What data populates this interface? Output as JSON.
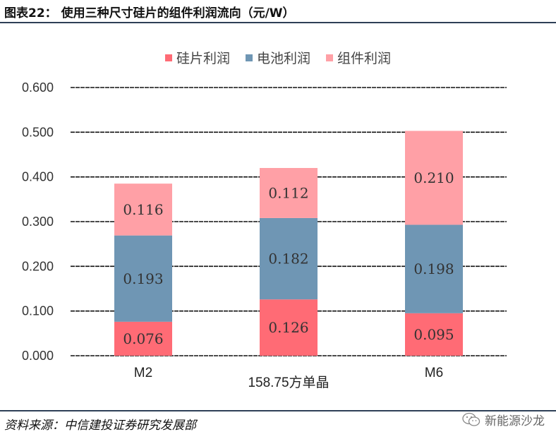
{
  "header": {
    "title": "图表22：  使用三种尺寸硅片的组件利润流向（元/W）"
  },
  "footer": {
    "source": "资料来源：中信建投证券研究发展部",
    "watermark": "新能源沙龙"
  },
  "colors": {
    "wafer": "#ff6b75",
    "cell": "#6f96b4",
    "module": "#ffa0a6"
  },
  "chart_data": {
    "type": "bar",
    "stacked": true,
    "categories": [
      "M2",
      "158.75方单晶",
      "M6"
    ],
    "series": [
      {
        "name": "硅片利润",
        "values": [
          0.076,
          0.126,
          0.095
        ],
        "labels": [
          "0.076",
          "0.126",
          "0.095"
        ]
      },
      {
        "name": "电池利润",
        "values": [
          0.193,
          0.182,
          0.198
        ],
        "labels": [
          "0.193",
          "0.182",
          "0.198"
        ]
      },
      {
        "name": "组件利润",
        "values": [
          0.116,
          0.112,
          0.21
        ],
        "labels": [
          "0.116",
          "0.112",
          "0.210"
        ]
      }
    ],
    "yticks": [
      "0.000",
      "0.100",
      "0.200",
      "0.300",
      "0.400",
      "0.500",
      "0.600"
    ],
    "ylim": [
      0,
      0.6
    ],
    "grid": true,
    "legend_position": "top-center"
  }
}
